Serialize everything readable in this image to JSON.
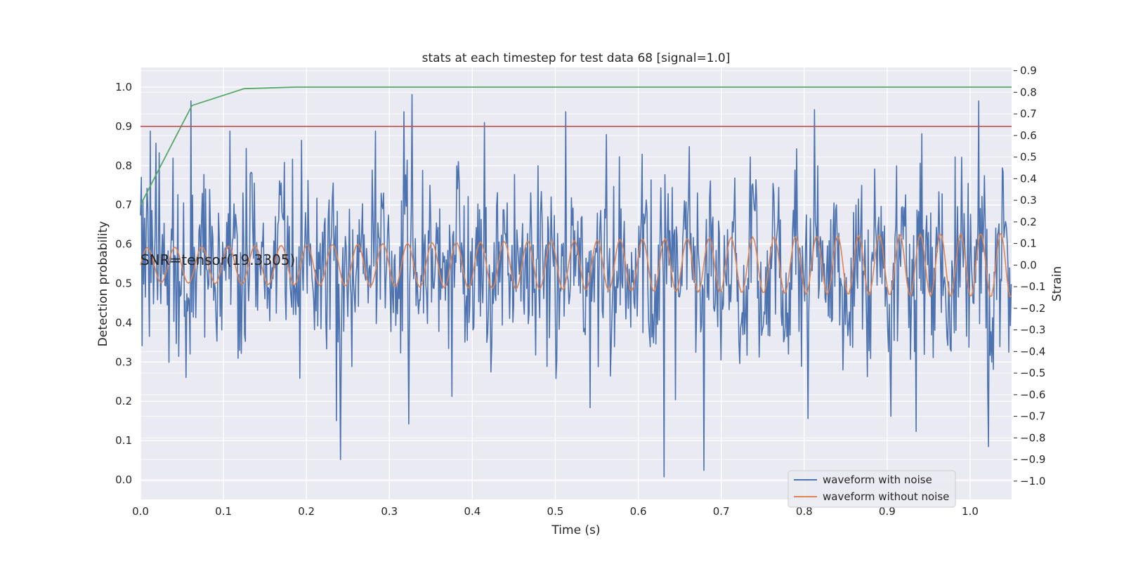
{
  "chart_data": {
    "type": "line",
    "title": "stats at each timestep for test data 68 [signal=1.0]",
    "xlabel": "Time (s)",
    "ylabel": "Detection probability",
    "y2label": "Strain",
    "xlim": [
      0.0,
      1.05
    ],
    "ylim": [
      -0.05,
      1.05
    ],
    "y2lim": [
      -1.085,
      0.915
    ],
    "xticks": [
      "0.0",
      "0.1",
      "0.2",
      "0.3",
      "0.4",
      "0.5",
      "0.6",
      "0.7",
      "0.8",
      "0.9",
      "1.0"
    ],
    "yticks": [
      "0.0",
      "0.1",
      "0.2",
      "0.3",
      "0.4",
      "0.5",
      "0.6",
      "0.7",
      "0.8",
      "0.9",
      "1.0"
    ],
    "y2ticks": [
      "−1.0",
      "−0.9",
      "−0.8",
      "−0.7",
      "−0.6",
      "−0.5",
      "−0.4",
      "−0.3",
      "−0.2",
      "−0.1",
      "0.0",
      "0.1",
      "0.2",
      "0.3",
      "0.4",
      "0.5",
      "0.6",
      "0.7",
      "0.8",
      "0.9"
    ],
    "grid": true,
    "legend_position": "lower-right",
    "annotation": "SNR=tensor(19.3305)",
    "series": [
      {
        "name": "waveform with noise",
        "axis": "right",
        "color": "#4c72b0",
        "sample_interval": 0.00098,
        "noise_std": 0.2,
        "seed": 68,
        "peaks": [
          {
            "x": 0.0,
            "y": 0.23
          },
          {
            "x": 0.011,
            "y": -0.33
          },
          {
            "x": 0.023,
            "y": 0.52
          },
          {
            "x": 0.034,
            "y": -0.45
          },
          {
            "x": 0.055,
            "y": -0.52
          },
          {
            "x": 0.061,
            "y": 0.76
          },
          {
            "x": 0.083,
            "y": 0.35
          },
          {
            "x": 0.127,
            "y": 0.54
          },
          {
            "x": 0.153,
            "y": -0.2
          },
          {
            "x": 0.168,
            "y": 0.39
          },
          {
            "x": 0.183,
            "y": 0.49
          },
          {
            "x": 0.236,
            "y": -0.72
          },
          {
            "x": 0.241,
            "y": -0.9
          },
          {
            "x": 0.279,
            "y": 0.44
          },
          {
            "x": 0.318,
            "y": 0.71
          },
          {
            "x": 0.327,
            "y": 0.79
          },
          {
            "x": 0.415,
            "y": 0.66
          },
          {
            "x": 0.479,
            "y": 0.46
          },
          {
            "x": 0.502,
            "y": -0.44
          },
          {
            "x": 0.513,
            "y": 0.71
          },
          {
            "x": 0.542,
            "y": -0.66
          },
          {
            "x": 0.631,
            "y": -0.98
          },
          {
            "x": 0.679,
            "y": -0.95
          },
          {
            "x": 0.805,
            "y": -0.71
          },
          {
            "x": 0.812,
            "y": 0.72
          },
          {
            "x": 0.905,
            "y": -0.7
          },
          {
            "x": 0.935,
            "y": -0.77
          },
          {
            "x": 0.982,
            "y": 0.5
          },
          {
            "x": 1.01,
            "y": 0.76
          },
          {
            "x": 1.022,
            "y": -0.84
          }
        ]
      },
      {
        "name": "waveform without noise",
        "axis": "right",
        "color": "#dd8452",
        "sample_interval": 0.002,
        "amplitude_start": 0.08,
        "amplitude_end": 0.15,
        "frequency_start_hz": 30,
        "frequency_end_hz": 42
      },
      {
        "axis": "left",
        "color": "#55a868",
        "x": [
          0.0,
          0.062,
          0.125,
          0.1875,
          0.25,
          1.05
        ],
        "y": [
          0.7,
          0.953,
          0.996,
          1.0,
          1.0,
          1.0
        ]
      },
      {
        "axis": "left",
        "color": "#c44e52",
        "x": [
          0.0,
          1.05
        ],
        "y": [
          0.9,
          0.9
        ]
      }
    ]
  }
}
